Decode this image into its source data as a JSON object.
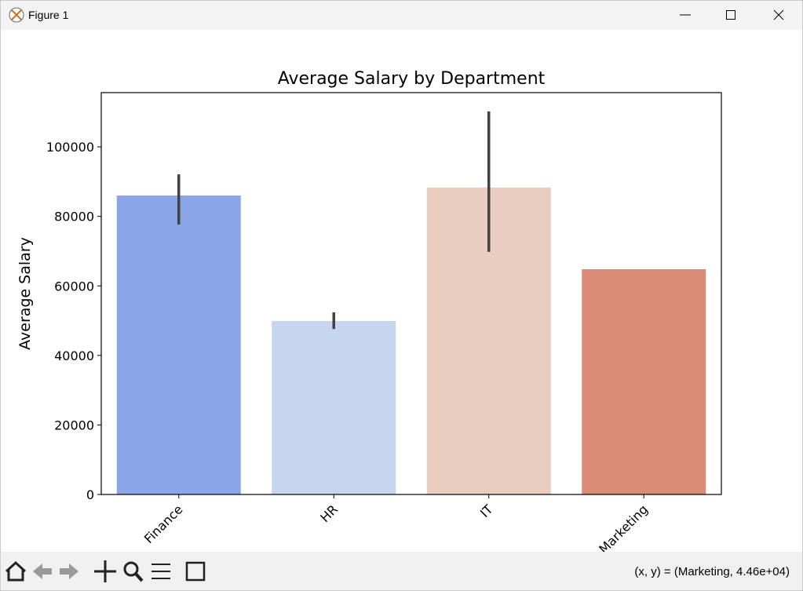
{
  "window": {
    "title": "Figure 1",
    "status": "(x, y) = (Marketing, 4.46e+04)"
  },
  "chart_data": {
    "type": "bar",
    "title": "Average Salary by Department",
    "y_label": "Average Salary",
    "categories": [
      "Finance",
      "HR",
      "IT",
      "Marketing"
    ],
    "values": [
      86000,
      49900,
      88300,
      64800
    ],
    "ci_low": [
      77650,
      47600,
      69800,
      null
    ],
    "ci_high": [
      92100,
      52400,
      110200,
      null
    ],
    "colors": [
      "#8aa6e8",
      "#c8d5ef",
      "#e9cdbf",
      "#da8c76"
    ],
    "error_color": "#424242",
    "ylim": [
      0,
      115600
    ],
    "yticks": [
      0,
      20000,
      40000,
      60000,
      80000,
      100000
    ]
  }
}
